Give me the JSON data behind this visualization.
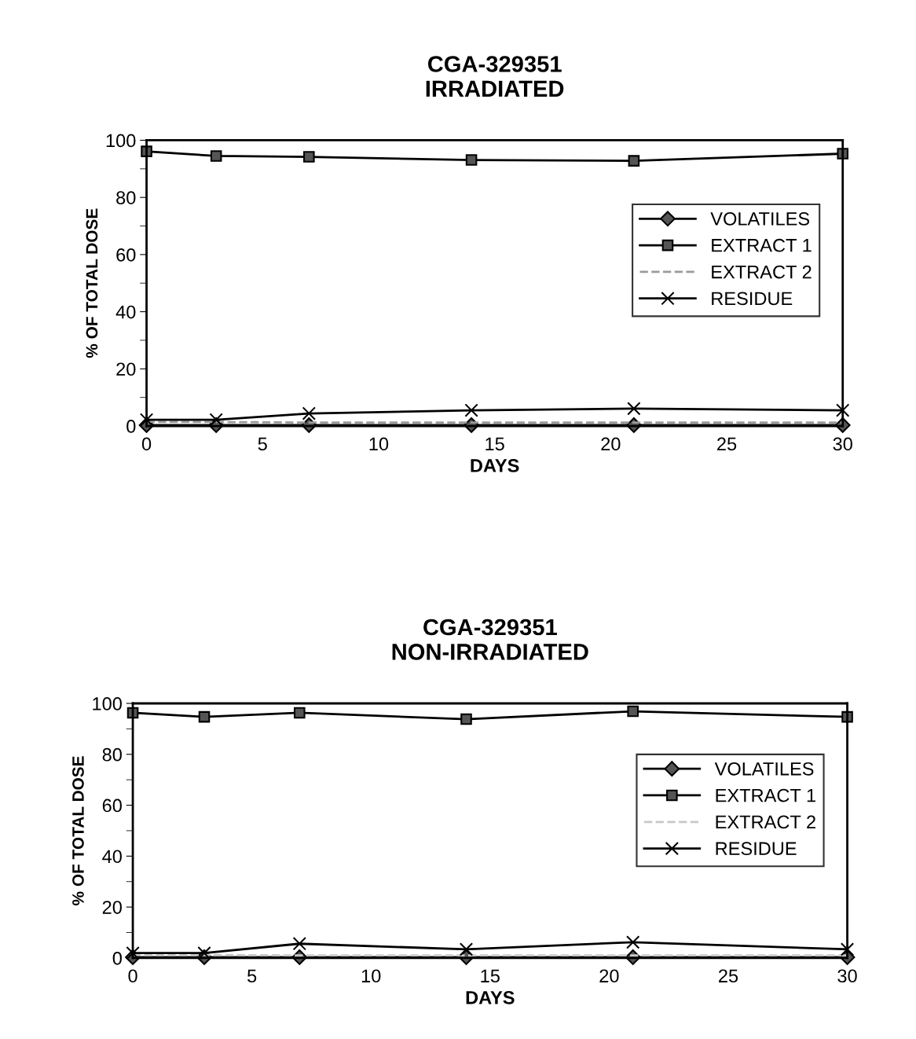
{
  "chart_data": [
    {
      "type": "line",
      "title": "CGA-329351\nIRRADIATED",
      "xlabel": "DAYS",
      "ylabel": "% OF TOTAL DOSE",
      "x": [
        0,
        3,
        7,
        14,
        21,
        30
      ],
      "xlim": [
        0,
        30
      ],
      "xticks": [
        0,
        5,
        10,
        15,
        20,
        25,
        30
      ],
      "ylim": [
        0,
        100
      ],
      "yticks": [
        0,
        20,
        40,
        60,
        80,
        100
      ],
      "grid": false,
      "legend": "right",
      "series": [
        {
          "name": "VOLATILES",
          "color": "#000000",
          "marker": "diamond",
          "line_style": "solid",
          "values": [
            0.3,
            0.3,
            0.3,
            0.3,
            0.3,
            0.3
          ]
        },
        {
          "name": "EXTRACT 1",
          "color": "#000000",
          "marker": "square",
          "line_style": "solid",
          "values": [
            96.1,
            94.5,
            94.2,
            93.1,
            92.8,
            95.3
          ]
        },
        {
          "name": "EXTRACT 2",
          "color": "#9a9a9a",
          "marker": "none",
          "line_style": "dashed",
          "values": [
            1.4,
            1.4,
            1.2,
            1.2,
            1.2,
            1.2
          ]
        },
        {
          "name": "RESIDUE",
          "color": "#000000",
          "marker": "cross",
          "line_style": "solid",
          "values": [
            2.2,
            2.2,
            4.4,
            5.5,
            6.1,
            5.5
          ]
        }
      ]
    },
    {
      "type": "line",
      "title": "CGA-329351\nNON-IRRADIATED",
      "xlabel": "DAYS",
      "ylabel": "% OF TOTAL DOSE",
      "x": [
        0,
        3,
        7,
        14,
        21,
        30
      ],
      "xlim": [
        0,
        30
      ],
      "xticks": [
        0,
        5,
        10,
        15,
        20,
        25,
        30
      ],
      "ylim": [
        0,
        100
      ],
      "yticks": [
        0,
        20,
        40,
        60,
        80,
        100
      ],
      "grid": false,
      "legend": "right",
      "series": [
        {
          "name": "VOLATILES",
          "color": "#000000",
          "marker": "diamond",
          "line_style": "solid",
          "values": [
            0.3,
            0.3,
            0.3,
            0.3,
            0.3,
            0.3
          ]
        },
        {
          "name": "EXTRACT 1",
          "color": "#000000",
          "marker": "square",
          "line_style": "solid",
          "values": [
            96.3,
            94.7,
            96.3,
            93.8,
            96.9,
            94.7
          ]
        },
        {
          "name": "EXTRACT 2",
          "color": "#c8c8c8",
          "marker": "none",
          "line_style": "dashed",
          "values": [
            1.2,
            1.2,
            1.0,
            1.0,
            1.0,
            1.0
          ]
        },
        {
          "name": "RESIDUE",
          "color": "#000000",
          "marker": "cross",
          "line_style": "solid",
          "values": [
            1.9,
            1.9,
            5.6,
            3.4,
            6.2,
            3.4
          ]
        }
      ]
    }
  ]
}
